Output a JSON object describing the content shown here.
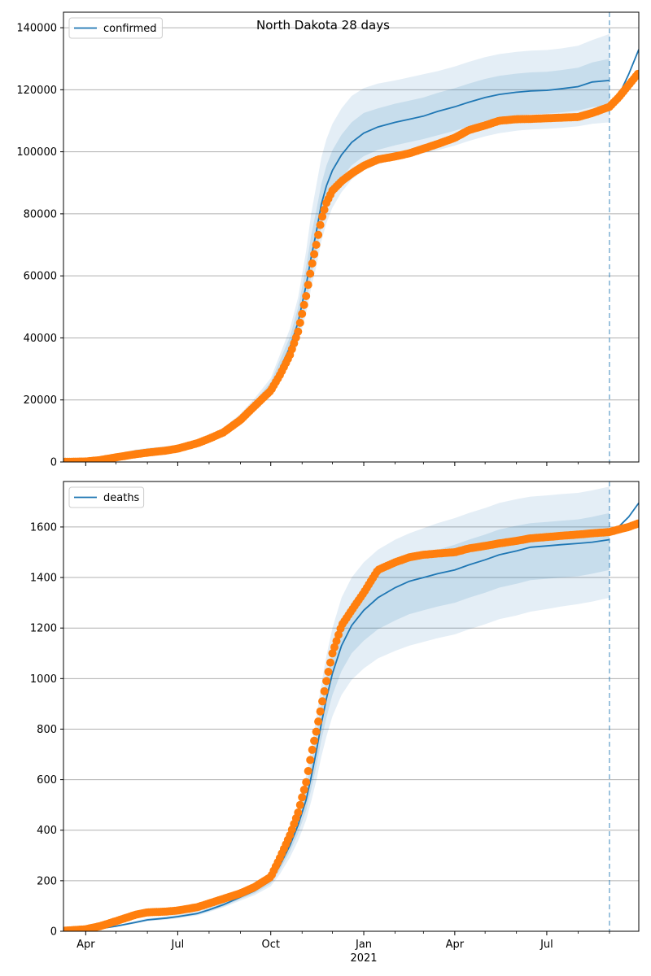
{
  "title": "North Dakota 28 days",
  "colors": {
    "model": "#1f77b4",
    "observed": "#ff7f0e",
    "band": "#1f77b4",
    "grid": "#b0b0b0",
    "cutoff": "#1f77b4"
  },
  "x_axis": {
    "start_day": "2020-03-10",
    "end_day": "2021-09-30",
    "major_ticks": [
      {
        "label": "Apr",
        "day": "2020-04-01"
      },
      {
        "label": "Jul",
        "day": "2020-07-01"
      },
      {
        "label": "Oct",
        "day": "2020-10-01"
      },
      {
        "label": "Jan",
        "day": "2021-01-01"
      },
      {
        "label": "Apr",
        "day": "2021-04-01"
      },
      {
        "label": "Jul",
        "day": "2021-07-01"
      }
    ],
    "year_label": "2021",
    "minor_ticks": [
      "2020-05-01",
      "2020-06-01",
      "2020-08-01",
      "2020-09-01",
      "2020-11-01",
      "2020-12-01",
      "2021-02-01",
      "2021-03-01",
      "2021-05-01",
      "2021-06-01",
      "2021-08-01",
      "2021-09-01"
    ],
    "forecast_cutoff": "2021-09-01"
  },
  "chart_data": [
    {
      "type": "line",
      "legend": "confirmed",
      "legend_position": "upper left",
      "grid": "horizontal",
      "ylim": [
        0,
        145000
      ],
      "yticks": [
        0,
        20000,
        40000,
        60000,
        80000,
        100000,
        120000,
        140000
      ],
      "model": {
        "x": [
          "2020-03-10",
          "2020-04-01",
          "2020-04-15",
          "2020-05-01",
          "2020-05-20",
          "2020-06-01",
          "2020-06-20",
          "2020-07-01",
          "2020-07-20",
          "2020-08-01",
          "2020-08-15",
          "2020-09-01",
          "2020-09-15",
          "2020-10-01",
          "2020-10-10",
          "2020-10-20",
          "2020-10-28",
          "2020-11-05",
          "2020-11-10",
          "2020-11-15",
          "2020-11-20",
          "2020-11-25",
          "2020-12-01",
          "2020-12-10",
          "2020-12-20",
          "2021-01-01",
          "2021-01-15",
          "2021-02-01",
          "2021-02-15",
          "2021-03-01",
          "2021-03-15",
          "2021-04-01",
          "2021-04-15",
          "2021-05-01",
          "2021-05-15",
          "2021-06-01",
          "2021-06-15",
          "2021-07-01",
          "2021-07-15",
          "2021-08-01",
          "2021-08-15",
          "2021-09-01"
        ],
        "y": [
          100,
          300,
          1000,
          2000,
          3500,
          4000,
          4600,
          5000,
          6500,
          8000,
          10000,
          14000,
          18500,
          24000,
          30000,
          37000,
          45000,
          57000,
          66000,
          74000,
          83000,
          89000,
          94000,
          99000,
          103000,
          106000,
          108000,
          109500,
          110500,
          111500,
          113000,
          114500,
          116000,
          117500,
          118500,
          119200,
          119600,
          119800,
          120300,
          121000,
          122500,
          123000
        ]
      },
      "model_tail": {
        "x": [
          "2021-09-01",
          "2021-09-10",
          "2021-09-20",
          "2021-09-30"
        ],
        "y": [
          115000,
          118000,
          125000,
          133000
        ]
      },
      "bands": [
        {
          "lower": [
            0,
            200,
            800,
            1700,
            3000,
            3600,
            4200,
            4600,
            6000,
            7400,
            9300,
            13000,
            17000,
            21500,
            26500,
            32000,
            38000,
            48000,
            56000,
            63000,
            71000,
            77000,
            82000,
            87000,
            91000,
            94000,
            96000,
            97500,
            98500,
            99500,
            100500,
            102000,
            103500,
            105000,
            106000,
            106800,
            107200,
            107400,
            107700,
            108200,
            109000,
            109500
          ],
          "upper": [
            200,
            400,
            1300,
            2400,
            4000,
            4500,
            5100,
            5500,
            7100,
            8700,
            11000,
            15500,
            20500,
            27000,
            34500,
            43000,
            53000,
            68000,
            80000,
            89000,
            98000,
            104000,
            109000,
            114000,
            118000,
            120500,
            122000,
            123000,
            124000,
            125000,
            126000,
            127500,
            129000,
            130500,
            131500,
            132200,
            132600,
            132800,
            133300,
            134200,
            136000,
            138000
          ]
        },
        {
          "lower": [
            20,
            240,
            880,
            1800,
            3160,
            3700,
            4330,
            4720,
            6180,
            7600,
            9540,
            13400,
            17600,
            22500,
            27800,
            33700,
            40300,
            51000,
            59800,
            67400,
            75700,
            81700,
            86700,
            91600,
            95600,
            98600,
            100600,
            102100,
            103100,
            104100,
            105300,
            106800,
            108300,
            109900,
            110900,
            111700,
            112100,
            112300,
            112700,
            113300,
            114400,
            115000
          ],
          "upper": [
            180,
            360,
            1120,
            2200,
            3840,
            4300,
            4880,
            5280,
            6820,
            8400,
            10500,
            14800,
            19500,
            25800,
            32700,
            40300,
            49800,
            63000,
            73000,
            81000,
            89500,
            95500,
            100500,
            105500,
            109500,
            112500,
            114000,
            115500,
            116500,
            117500,
            119000,
            120500,
            122000,
            123500,
            124500,
            125200,
            125600,
            125800,
            126300,
            127100,
            128800,
            130000
          ]
        }
      ],
      "observed": {
        "x": [
          "2020-03-10",
          "2020-04-01",
          "2020-04-15",
          "2020-05-01",
          "2020-05-20",
          "2020-06-01",
          "2020-06-20",
          "2020-07-01",
          "2020-07-20",
          "2020-08-01",
          "2020-08-15",
          "2020-09-01",
          "2020-09-15",
          "2020-10-01",
          "2020-10-10",
          "2020-10-20",
          "2020-10-28",
          "2020-11-05",
          "2020-11-10",
          "2020-11-15",
          "2020-11-20",
          "2020-11-25",
          "2020-12-01",
          "2020-12-10",
          "2020-12-20",
          "2021-01-01",
          "2021-01-15",
          "2021-02-01",
          "2021-02-15",
          "2021-03-01",
          "2021-03-15",
          "2021-04-01",
          "2021-04-15",
          "2021-05-01",
          "2021-05-15",
          "2021-06-01",
          "2021-06-15",
          "2021-07-01",
          "2021-07-15",
          "2021-08-01",
          "2021-08-15",
          "2021-09-01",
          "2021-09-10",
          "2021-09-20",
          "2021-09-30"
        ],
        "y": [
          50,
          150,
          600,
          1500,
          2500,
          3000,
          3700,
          4300,
          6000,
          7500,
          9500,
          13500,
          18000,
          23000,
          28000,
          34500,
          42000,
          53500,
          62500,
          70000,
          78000,
          83500,
          87500,
          90500,
          93000,
          95500,
          97500,
          98500,
          99500,
          101000,
          102500,
          104500,
          107000,
          108500,
          110000,
          110500,
          110600,
          110800,
          111000,
          111200,
          112500,
          114500,
          117500,
          121500,
          125500
        ]
      }
    },
    {
      "type": "line",
      "legend": "deaths",
      "legend_position": "upper left",
      "grid": "horizontal",
      "ylim": [
        0,
        1780
      ],
      "yticks": [
        0,
        200,
        400,
        600,
        800,
        1000,
        1200,
        1400,
        1600
      ],
      "model": {
        "x": [
          "2020-03-10",
          "2020-04-01",
          "2020-04-15",
          "2020-05-01",
          "2020-05-20",
          "2020-06-01",
          "2020-06-20",
          "2020-07-01",
          "2020-07-20",
          "2020-08-01",
          "2020-08-15",
          "2020-09-01",
          "2020-09-15",
          "2020-10-01",
          "2020-10-10",
          "2020-10-20",
          "2020-10-28",
          "2020-11-05",
          "2020-11-10",
          "2020-11-15",
          "2020-11-20",
          "2020-11-25",
          "2020-12-01",
          "2020-12-10",
          "2020-12-20",
          "2021-01-01",
          "2021-01-15",
          "2021-02-01",
          "2021-02-15",
          "2021-03-01",
          "2021-03-15",
          "2021-04-01",
          "2021-04-15",
          "2021-05-01",
          "2021-05-15",
          "2021-06-01",
          "2021-06-15",
          "2021-07-01",
          "2021-07-15",
          "2021-08-01",
          "2021-08-15",
          "2021-09-01"
        ],
        "y": [
          0,
          5,
          10,
          20,
          35,
          45,
          52,
          58,
          70,
          85,
          105,
          135,
          160,
          200,
          260,
          340,
          420,
          520,
          610,
          710,
          820,
          920,
          1020,
          1130,
          1210,
          1270,
          1320,
          1360,
          1385,
          1400,
          1415,
          1430,
          1450,
          1470,
          1490,
          1505,
          1520,
          1525,
          1530,
          1535,
          1540,
          1550
        ]
      },
      "model_tail": {
        "x": [
          "2021-09-01",
          "2021-09-10",
          "2021-09-20",
          "2021-09-30"
        ],
        "y": [
          1580,
          1600,
          1640,
          1695
        ]
      },
      "bands": [
        {
          "lower": [
            0,
            3,
            8,
            17,
            30,
            40,
            46,
            51,
            62,
            76,
            94,
            121,
            143,
            178,
            226,
            292,
            358,
            440,
            514,
            595,
            690,
            770,
            850,
            935,
            995,
            1040,
            1080,
            1110,
            1130,
            1145,
            1160,
            1175,
            1195,
            1215,
            1235,
            1250,
            1265,
            1275,
            1285,
            1295,
            1305,
            1320
          ],
          "upper": [
            2,
            8,
            13,
            24,
            41,
            52,
            60,
            67,
            80,
            97,
            120,
            155,
            185,
            232,
            305,
            400,
            495,
            615,
            725,
            845,
            975,
            1090,
            1200,
            1320,
            1400,
            1460,
            1510,
            1550,
            1575,
            1595,
            1615,
            1635,
            1655,
            1675,
            1695,
            1710,
            1720,
            1725,
            1730,
            1735,
            1745,
            1760
          ]
        },
        {
          "lower": [
            0,
            4,
            9,
            18,
            32,
            42,
            48,
            54,
            65,
            79,
            98,
            127,
            150,
            188,
            242,
            315,
            387,
            478,
            560,
            650,
            755,
            845,
            935,
            1030,
            1100,
            1150,
            1195,
            1230,
            1255,
            1270,
            1285,
            1300,
            1320,
            1340,
            1360,
            1375,
            1390,
            1395,
            1400,
            1405,
            1415,
            1430
          ],
          "upper": [
            1,
            7,
            12,
            22,
            38,
            49,
            57,
            63,
            75,
            91,
            113,
            145,
            172,
            215,
            282,
            370,
            458,
            568,
            668,
            778,
            895,
            1000,
            1105,
            1220,
            1300,
            1360,
            1410,
            1450,
            1475,
            1495,
            1510,
            1530,
            1550,
            1570,
            1590,
            1605,
            1615,
            1620,
            1625,
            1630,
            1640,
            1655
          ]
        }
      ],
      "observed": {
        "x": [
          "2020-03-10",
          "2020-04-01",
          "2020-04-15",
          "2020-05-01",
          "2020-05-20",
          "2020-06-01",
          "2020-06-20",
          "2020-07-01",
          "2020-07-20",
          "2020-08-01",
          "2020-08-15",
          "2020-09-01",
          "2020-09-15",
          "2020-10-01",
          "2020-10-10",
          "2020-10-20",
          "2020-10-28",
          "2020-11-05",
          "2020-11-10",
          "2020-11-15",
          "2020-11-20",
          "2020-11-25",
          "2020-12-01",
          "2020-12-10",
          "2020-12-20",
          "2021-01-01",
          "2021-01-15",
          "2021-02-01",
          "2021-02-15",
          "2021-03-01",
          "2021-03-15",
          "2021-04-01",
          "2021-04-15",
          "2021-05-01",
          "2021-05-15",
          "2021-06-01",
          "2021-06-15",
          "2021-07-01",
          "2021-07-15",
          "2021-08-01",
          "2021-08-15",
          "2021-09-01",
          "2021-09-10",
          "2021-09-20",
          "2021-09-30"
        ],
        "y": [
          2,
          8,
          20,
          40,
          65,
          75,
          78,
          82,
          95,
          110,
          128,
          150,
          175,
          215,
          290,
          380,
          470,
          590,
          700,
          790,
          890,
          990,
          1100,
          1210,
          1270,
          1340,
          1430,
          1460,
          1480,
          1490,
          1495,
          1500,
          1515,
          1525,
          1535,
          1545,
          1555,
          1560,
          1565,
          1570,
          1575,
          1580,
          1590,
          1600,
          1615
        ]
      }
    }
  ]
}
